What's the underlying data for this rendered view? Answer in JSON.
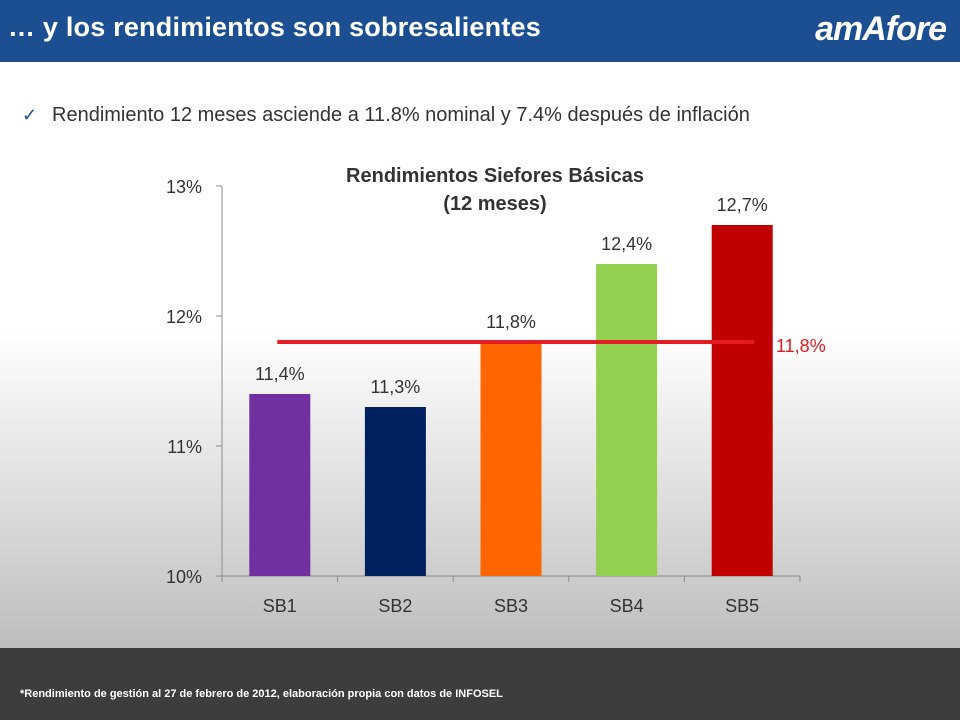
{
  "header": {
    "title": "… y los rendimientos son sobresalientes",
    "logo": "amAfore"
  },
  "bullet": {
    "text": "Rendimiento 12 meses asciende a 11.8% nominal y 7.4% después de inflación"
  },
  "chart_data": {
    "type": "bar",
    "title_lines": [
      "Rendimientos Siefores Básicas",
      "(12 meses)"
    ],
    "categories": [
      "SB1",
      "SB2",
      "SB3",
      "SB4",
      "SB5"
    ],
    "values": [
      11.4,
      11.3,
      11.8,
      12.4,
      12.7
    ],
    "value_labels": [
      "11,4%",
      "11,3%",
      "11,8%",
      "12,4%",
      "12,7%"
    ],
    "colors": [
      "#7030a0",
      "#002060",
      "#ff6600",
      "#92d050",
      "#c00000"
    ],
    "ylim": [
      10,
      13
    ],
    "yticks": [
      10,
      11,
      12,
      13
    ],
    "ytick_labels": [
      "10%",
      "11%",
      "12%",
      "13%"
    ],
    "reference_line": {
      "value": 11.8,
      "label": "11,8%",
      "color": "#e31b23"
    },
    "grid": false
  },
  "footer": {
    "note": "*Rendimiento de gestión al 27 de febrero de 2012, elaboración propia con datos de INFOSEL"
  }
}
